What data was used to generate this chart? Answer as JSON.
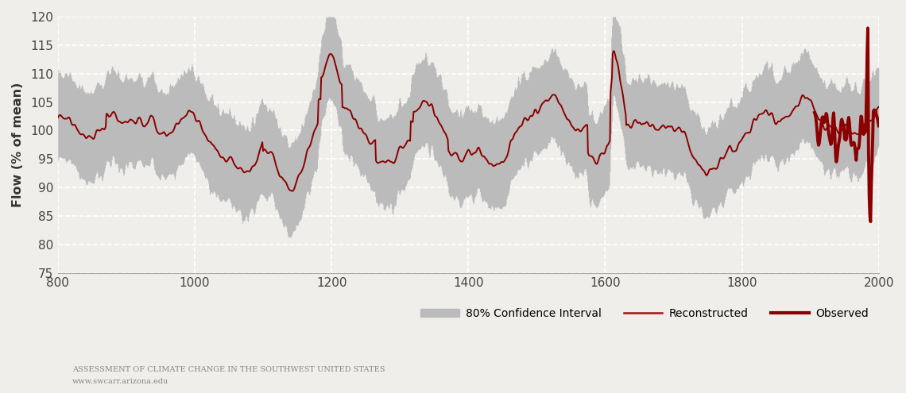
{
  "years_start": 800,
  "years_end": 2000,
  "obs_start_year": 1906,
  "ylim": [
    75,
    120
  ],
  "yticks": [
    75,
    80,
    85,
    90,
    95,
    100,
    105,
    110,
    115,
    120
  ],
  "xticks": [
    800,
    1000,
    1200,
    1400,
    1600,
    1800,
    2000
  ],
  "ylabel": "Flow (% of mean)",
  "bg_color": "#f0eeeb",
  "plot_bg_color": "#f0eeeb",
  "ci_color": "#bbbbbb",
  "recon_color": "#8b0000",
  "obs_color": "#8b0000",
  "obs_linewidth": 2.8,
  "recon_linewidth": 1.4,
  "grid_color": "#ffffff",
  "grid_style": "--",
  "title_text": "Assessment of Climate Change in the Southwest United States",
  "subtitle_text": "www.swcarr.arizona.edu",
  "legend_items": [
    "80% Confidence Interval",
    "Reconstructed",
    "Observed"
  ]
}
